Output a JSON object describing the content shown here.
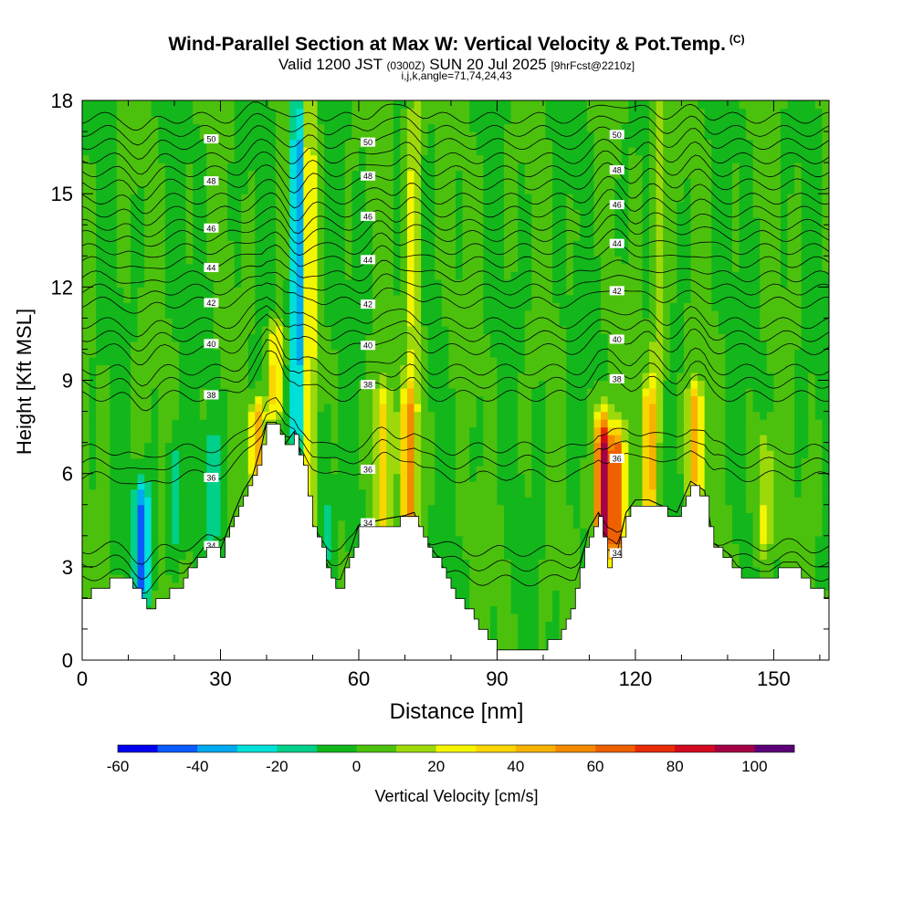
{
  "title": "Wind-Parallel Section at Max W: Vertical Velocity & Pot.Temp.",
  "copyright": "(C)",
  "subtitle": {
    "valid": "Valid 1200 JST",
    "utc": "(0300Z)",
    "date": "SUN 20 Jul 2025",
    "forecast": "[9hrFcst@2210z]"
  },
  "params": "i,j,k,angle=71,74,24,43",
  "chart_data": {
    "type": "heatmap",
    "xlabel": "Distance [nm]",
    "ylabel": "Height [Kft MSL]",
    "xlim": [
      0,
      162
    ],
    "ylim": [
      0,
      18
    ],
    "x_ticks": [
      "0",
      "30",
      "60",
      "90",
      "120",
      "150"
    ],
    "x_tick_values": [
      0,
      30,
      60,
      90,
      120,
      150
    ],
    "y_ticks": [
      "0",
      "3",
      "6",
      "9",
      "12",
      "15",
      "18"
    ],
    "y_tick_values": [
      0,
      3,
      6,
      9,
      12,
      15,
      18
    ],
    "terrain_height_kft": {
      "x": [
        0,
        3,
        6,
        10,
        14,
        17,
        20,
        24,
        27,
        30,
        33,
        35,
        37,
        39,
        40,
        42,
        44,
        46,
        48,
        50,
        52,
        54,
        56,
        58,
        60,
        63,
        66,
        70,
        72,
        74,
        77,
        80,
        83,
        86,
        88,
        90,
        93,
        96,
        99,
        102,
        104,
        106,
        108,
        110,
        112,
        114,
        116,
        118,
        120,
        123,
        126,
        129,
        132,
        135,
        137,
        140,
        143,
        146,
        149,
        152,
        155,
        158,
        162
      ],
      "y": [
        2.0,
        2.3,
        2.5,
        2.6,
        1.7,
        2.0,
        2.3,
        3.0,
        3.6,
        3.4,
        4.6,
        5.3,
        5.8,
        6.8,
        7.5,
        7.5,
        6.8,
        7.2,
        6.2,
        4.2,
        3.5,
        2.5,
        2.4,
        3.3,
        4.2,
        4.3,
        4.4,
        4.5,
        4.6,
        3.8,
        3.2,
        2.3,
        1.8,
        1.0,
        0.7,
        0.4,
        0.3,
        0.3,
        0.4,
        0.6,
        1.0,
        1.8,
        2.9,
        4.1,
        4.6,
        3.0,
        3.3,
        4.6,
        5.0,
        5.0,
        4.8,
        4.6,
        5.6,
        5.3,
        3.6,
        3.3,
        2.7,
        2.7,
        2.7,
        3.0,
        3.0,
        2.4,
        2.0
      ]
    },
    "colorbar": {
      "label": "Vertical Velocity [cm/s]",
      "tick_labels": [
        "-60",
        "-40",
        "-20",
        "0",
        "20",
        "40",
        "60",
        "80",
        "100"
      ],
      "tick_values": [
        -60,
        -40,
        -20,
        0,
        20,
        40,
        60,
        80,
        100
      ],
      "range": [
        -60,
        110
      ],
      "colors": [
        "#0000f0",
        "#0a5aff",
        "#00aaf0",
        "#00e0d8",
        "#00d08a",
        "#13b71c",
        "#4cc10d",
        "#9dd90a",
        "#f5f500",
        "#f9d600",
        "#f7b100",
        "#f48a00",
        "#ef6000",
        "#e82c05",
        "#d40a20",
        "#a50045",
        "#5c0078"
      ]
    },
    "vertical_velocity_features": [
      {
        "x": 13,
        "y_range": [
          2.3,
          5.3
        ],
        "w": -45
      },
      {
        "x": 20,
        "y_range": [
          3.5,
          7.0
        ],
        "w": -15
      },
      {
        "x": 28,
        "y_range": [
          4.0,
          7.0
        ],
        "w": -15
      },
      {
        "x": 38,
        "y_range": [
          6.0,
          8.0
        ],
        "w": 50
      },
      {
        "x": 42,
        "y_range": [
          8.0,
          10.5
        ],
        "w": 40
      },
      {
        "x": 47,
        "y_range": [
          6.5,
          18.0
        ],
        "w": -45
      },
      {
        "x": 49,
        "y_range": [
          4.2,
          18.0
        ],
        "w": 35
      },
      {
        "x": 53,
        "y_range": [
          3.0,
          7.5
        ],
        "w": -15
      },
      {
        "x": 65,
        "y_range": [
          4.0,
          8.5
        ],
        "w": 35
      },
      {
        "x": 71,
        "y_range": [
          4.3,
          8.5
        ],
        "w": 55
      },
      {
        "x": 72,
        "y_range": [
          9.0,
          18.0
        ],
        "w": 25
      },
      {
        "x": 113,
        "y_range": [
          3.5,
          7.5
        ],
        "w": 100
      },
      {
        "x": 116,
        "y_range": [
          3.5,
          7.0
        ],
        "w": 65
      },
      {
        "x": 123,
        "y_range": [
          5.0,
          8.5
        ],
        "w": 45
      },
      {
        "x": 125,
        "y_range": [
          8.5,
          18.0
        ],
        "w": 20
      },
      {
        "x": 133,
        "y_range": [
          5.5,
          8.5
        ],
        "w": 45
      },
      {
        "x": 148,
        "y_range": [
          3.5,
          7.0
        ],
        "w": 25
      }
    ],
    "potential_temperature_contours": [
      {
        "label": "34",
        "value": 34,
        "level_kft": 3.0
      },
      {
        "label": "36",
        "value": 36,
        "level_kft": 6.0
      },
      {
        "label": "38",
        "value": 38,
        "level_kft": 8.5
      },
      {
        "label": "40",
        "value": 40,
        "level_kft": 10.0
      },
      {
        "label": "42",
        "value": 42,
        "level_kft": 11.5
      },
      {
        "label": "44",
        "value": 44,
        "level_kft": 12.8
      },
      {
        "label": "46",
        "value": 46,
        "level_kft": 14.0
      },
      {
        "label": "48",
        "value": 48,
        "level_kft": 15.3
      },
      {
        "label": "50",
        "value": 50,
        "level_kft": 16.6
      }
    ],
    "grid": false,
    "legend": "bottom colorbar"
  }
}
